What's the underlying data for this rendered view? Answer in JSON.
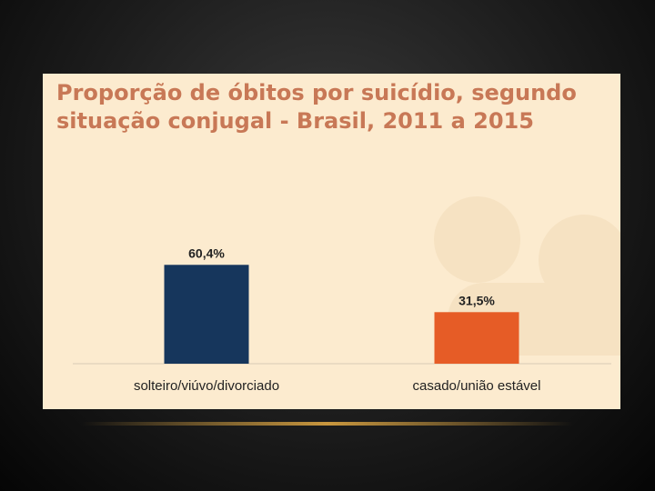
{
  "chart_data": {
    "type": "bar",
    "title": "Proporção de óbitos por suicídio, segundo situação conjugal - Brasil, 2011 a 2015",
    "categories": [
      "solteiro/viúvo/divorciado",
      "casado/união estável"
    ],
    "values": [
      60.4,
      31.5
    ],
    "data_labels": [
      "60,4%",
      "31,5%"
    ],
    "bar_colors": [
      "#16365c",
      "#e65c26"
    ],
    "xlabel": "",
    "ylabel": "",
    "ylim": [
      0,
      70
    ],
    "grid": false,
    "legend": "none"
  },
  "colors": {
    "slide_background": "#fcebcf",
    "title": "#c87856",
    "label_text": "#222222"
  }
}
